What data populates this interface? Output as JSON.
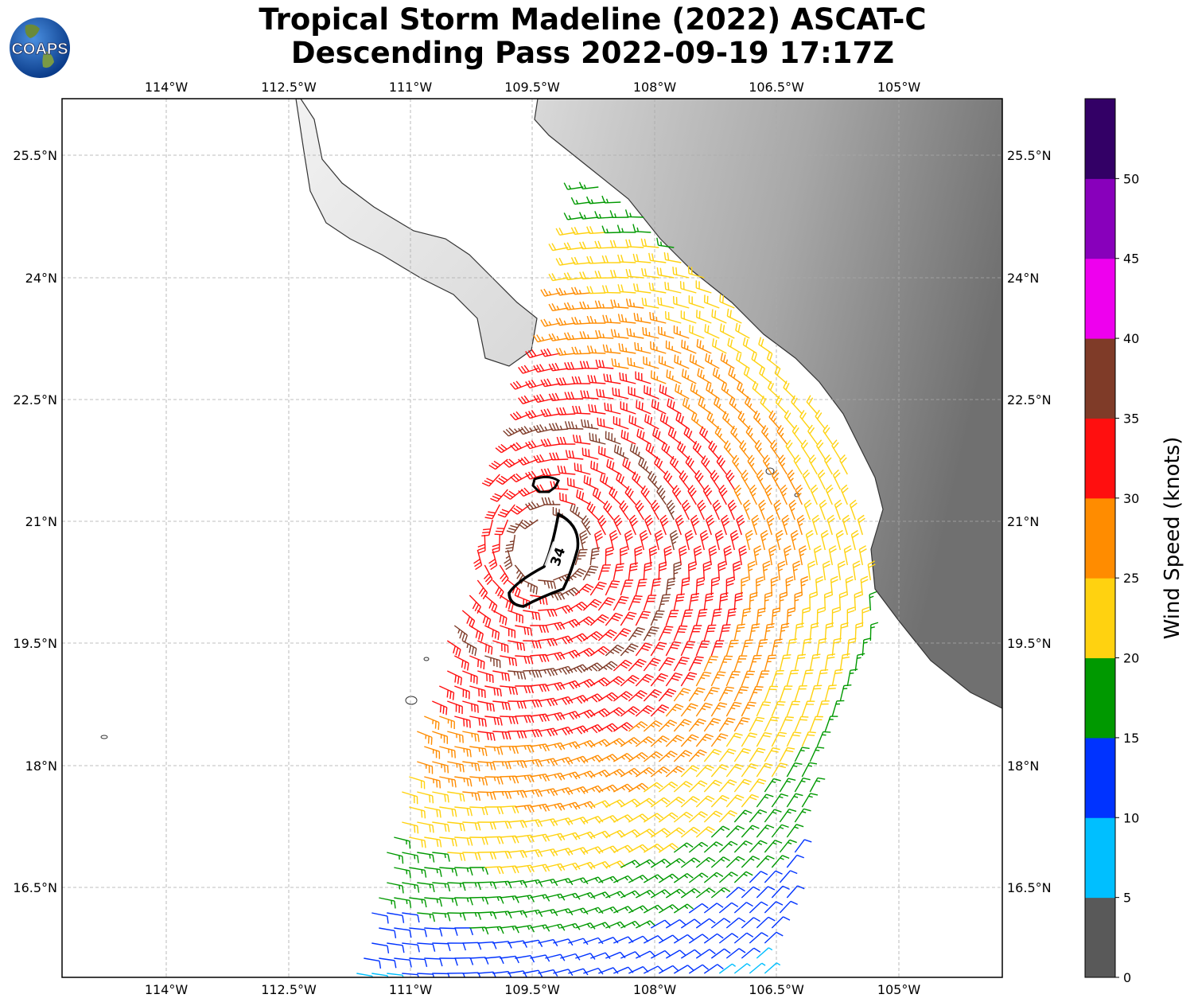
{
  "title_line1": "Tropical Storm Madeline (2022) ASCAT-C",
  "title_line2": "Descending Pass 2022-09-19 17:17Z",
  "logo_text": "COAPS",
  "lon_ticks": [
    "114°W",
    "112.5°W",
    "111°W",
    "109.5°W",
    "108°W",
    "106.5°W",
    "105°W"
  ],
  "lat_ticks": [
    "25.5°N",
    "24°N",
    "22.5°N",
    "21°N",
    "19.5°N",
    "18°N",
    "16.5°N"
  ],
  "contour_label": "34",
  "colorbar": {
    "label": "Wind Speed (knots)",
    "ticks": [
      "0",
      "5",
      "10",
      "15",
      "20",
      "25",
      "30",
      "35",
      "40",
      "45",
      "50"
    ],
    "colors": [
      "#595959",
      "#00bfff",
      "#0033ff",
      "#009900",
      "#ffd210",
      "#ff8c00",
      "#ff0f0f",
      "#7f3b28",
      "#ee00ee",
      "#8800bb",
      "#330066"
    ]
  }
}
